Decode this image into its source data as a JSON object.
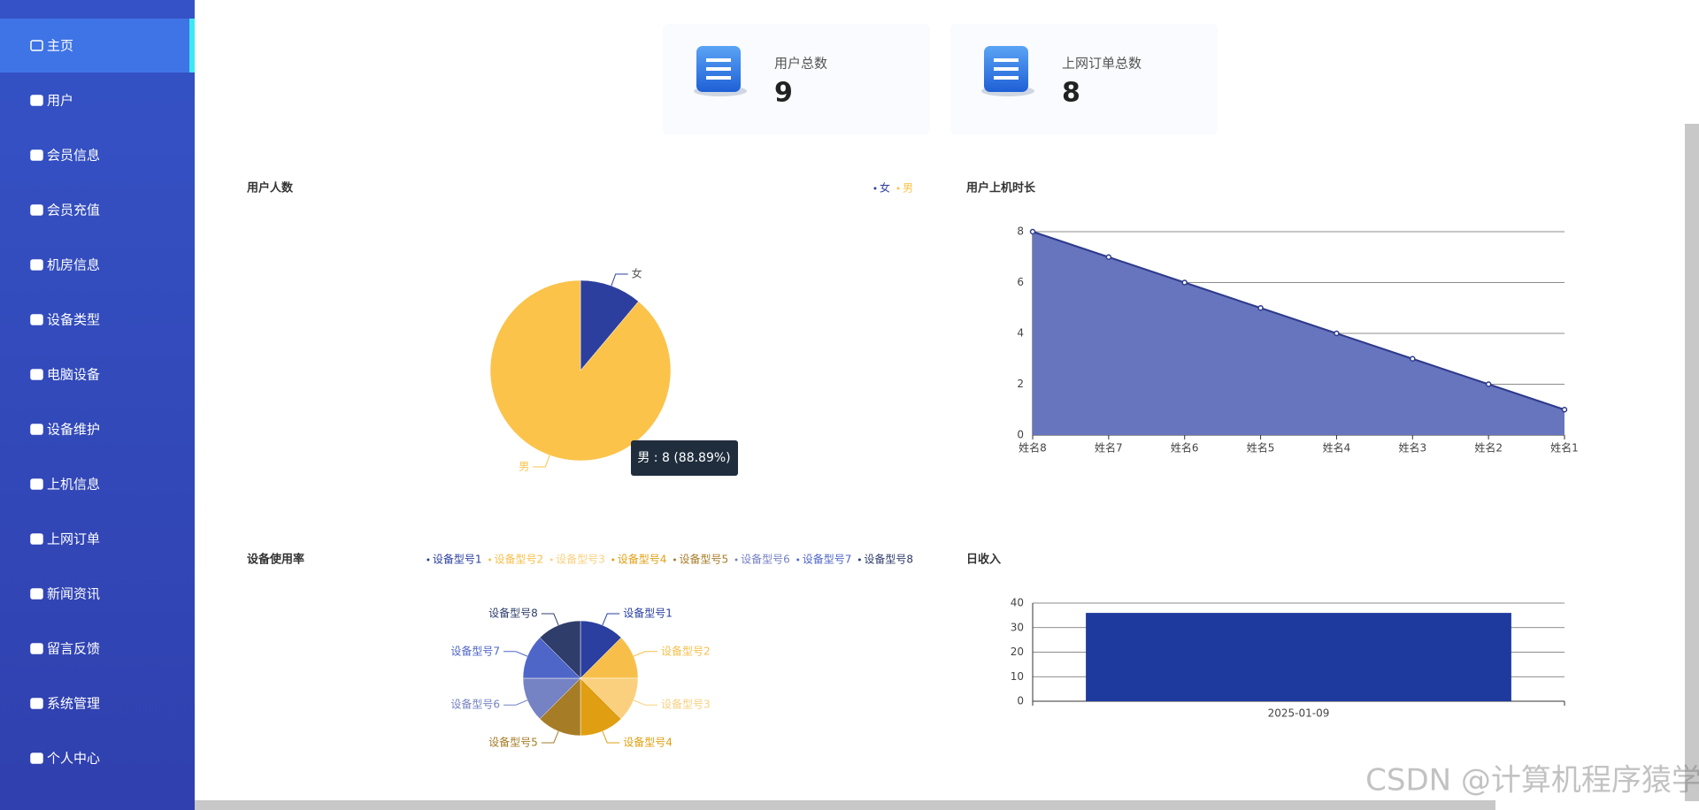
{
  "sidebar": {
    "menu": [
      "主页",
      "用户",
      "会员信息",
      "会员充值",
      "机房信息",
      "设备类型",
      "电脑设备",
      "设备维护",
      "上机信息",
      "上网订单",
      "新闻资讯",
      "留言反馈",
      "系统管理",
      "个人中心"
    ]
  },
  "stats": [
    {
      "label": "用户总数",
      "value": 9
    },
    {
      "label": "上网订单总数",
      "value": 8
    }
  ],
  "chart_data": [
    {
      "type": "pie",
      "title": "用户人数",
      "categories": [
        "女",
        "男"
      ],
      "values": [
        1,
        8
      ],
      "colors": [
        "#2d3f9e",
        "#fbc34a"
      ],
      "legend": "top-right",
      "tooltip": "男 : 8 (88.89%)"
    },
    {
      "type": "area",
      "title": "用户上机时长",
      "categories": [
        "姓名8",
        "姓名7",
        "姓名6",
        "姓名5",
        "姓名4",
        "姓名3",
        "姓名2",
        "姓名1"
      ],
      "values": [
        8,
        7,
        6,
        5,
        4,
        3,
        2,
        1
      ],
      "color": "#2d3a8c",
      "fill": "#6675bd",
      "ylim": [
        0,
        8
      ],
      "yticks": [
        0,
        2,
        4,
        6,
        8
      ],
      "grid": true
    },
    {
      "type": "pie",
      "title": "设备使用率",
      "categories": [
        "设备型号1",
        "设备型号2",
        "设备型号3",
        "设备型号4",
        "设备型号5",
        "设备型号6",
        "设备型号7",
        "设备型号8"
      ],
      "values": [
        1,
        1,
        1,
        1,
        1,
        1,
        1,
        1
      ],
      "colors": [
        "#2a3fa0",
        "#f7bf4a",
        "#fad07f",
        "#e09f12",
        "#a67c27",
        "#7582c4",
        "#4f66c9",
        "#2f3d6b"
      ],
      "legend": "top-right"
    },
    {
      "type": "bar",
      "title": "日收入",
      "categories": [
        "2025-01-09"
      ],
      "values": [
        36
      ],
      "color": "#1f3a9e",
      "ylim": [
        0,
        40
      ],
      "yticks": [
        0,
        10,
        20,
        30,
        40
      ],
      "grid": true
    }
  ],
  "watermark": "CSDN @计算机程序猿学长"
}
